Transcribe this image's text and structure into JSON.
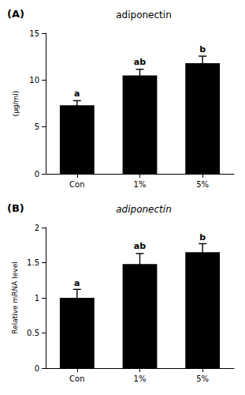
{
  "chart_data": [
    {
      "type": "bar",
      "panel_label": "(A)",
      "title": "adiponectin",
      "categories": [
        "Con",
        "1%",
        "5%"
      ],
      "values": [
        7.3,
        10.5,
        11.8
      ],
      "errors": [
        0.5,
        0.65,
        0.75
      ],
      "color": "#000000",
      "ylabel": "(μg/ml)",
      "ylim": [
        0,
        15
      ],
      "yticks": [
        0,
        5,
        10,
        15
      ],
      "grid": false,
      "annotations": [
        {
          "text": "a",
          "x": "Con",
          "y": 8.0
        },
        {
          "text": "ab",
          "x": "1%",
          "y": 11.35
        },
        {
          "text": "b",
          "x": "5%",
          "y": 12.75
        }
      ]
    },
    {
      "type": "bar",
      "panel_label": "(B)",
      "title": "adiponectin",
      "categories": [
        "Con",
        "1%",
        "5%"
      ],
      "values": [
        1.0,
        1.48,
        1.65
      ],
      "errors": [
        0.12,
        0.15,
        0.12
      ],
      "color": "#000000",
      "ylabel": "Relative mRNA level",
      "ylim": [
        0,
        2
      ],
      "yticks": [
        0,
        0.5,
        1,
        1.5,
        2
      ],
      "grid": false,
      "annotations": [
        {
          "text": "a",
          "x": "Con",
          "y": 1.14
        },
        {
          "text": "ab",
          "x": "1%",
          "y": 1.66
        },
        {
          "text": "b",
          "x": "5%",
          "y": 1.79
        }
      ]
    }
  ]
}
